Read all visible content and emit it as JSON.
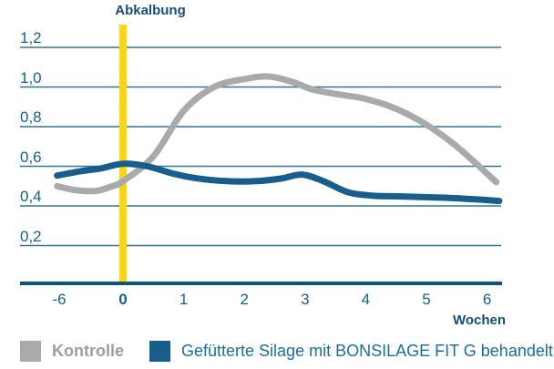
{
  "colors": {
    "text_dark_blue": "#164F7A",
    "tick_text_blue": "#17618C",
    "grid": "#2F7796",
    "axis": "#0E567E",
    "marker_yellow": "#FFD60C",
    "series_gray": "#A8AAAC",
    "series_blue": "#175E8C",
    "legend_gray_text": "#9B9EA1",
    "legend_blue_text": "#1A6FA0"
  },
  "chart_data": {
    "type": "line",
    "title": "Abkalbung",
    "xlabel": "Wochen",
    "ylabel": "",
    "ylim": [
      0,
      1.3
    ],
    "grid": "horizontal gridlines only",
    "legend_position": "bottom",
    "x_axis_note": "x scale compressed between week -6 and week 0; 'Abkalbung' (calving) marked by yellow vertical line at week 0",
    "event_marker": {
      "label": "Abkalbung",
      "x_week": 0
    },
    "x_axis_ticks": [
      {
        "label": "-6",
        "week": -6,
        "bold": false
      },
      {
        "label": "0",
        "week": 0,
        "bold": true
      },
      {
        "label": "1",
        "week": 1,
        "bold": false
      },
      {
        "label": "2",
        "week": 2,
        "bold": false
      },
      {
        "label": "3",
        "week": 3,
        "bold": false
      },
      {
        "label": "4",
        "week": 4,
        "bold": false
      },
      {
        "label": "5",
        "week": 5,
        "bold": false
      },
      {
        "label": "6",
        "week": 6,
        "bold": false
      }
    ],
    "y_axis_ticks": [
      {
        "label": "1,2",
        "value": 1.2
      },
      {
        "label": "1,0",
        "value": 1.0
      },
      {
        "label": "0,8",
        "value": 0.8
      },
      {
        "label": "0,6",
        "value": 0.6
      },
      {
        "label": "0,4",
        "value": 0.4
      },
      {
        "label": "0,2",
        "value": 0.2
      }
    ],
    "y_gridlines": [
      1.2,
      1.0,
      0.8,
      0.6,
      0.4,
      0.2
    ],
    "series": [
      {
        "name": "Kontrolle",
        "color": "#A8AAAC",
        "points": [
          [
            -6.2,
            0.5
          ],
          [
            -4.5,
            0.48
          ],
          [
            -2.5,
            0.476
          ],
          [
            -1,
            0.5
          ],
          [
            0,
            0.525
          ],
          [
            0.5,
            0.65
          ],
          [
            1,
            0.88
          ],
          [
            1.5,
            1.0
          ],
          [
            2,
            1.04
          ],
          [
            2.4,
            1.053
          ],
          [
            2.8,
            1.025
          ],
          [
            3.1,
            0.99
          ],
          [
            3.5,
            0.965
          ],
          [
            4,
            0.94
          ],
          [
            4.5,
            0.89
          ],
          [
            5,
            0.81
          ],
          [
            5.5,
            0.7
          ],
          [
            6.15,
            0.52
          ]
        ]
      },
      {
        "name": "Gefütterte Silage mit BONSILAGE FIT G behandelt",
        "color": "#175E8C",
        "points": [
          [
            -6.2,
            0.553
          ],
          [
            -4,
            0.575
          ],
          [
            -2,
            0.59
          ],
          [
            0,
            0.613
          ],
          [
            0.4,
            0.6
          ],
          [
            0.8,
            0.565
          ],
          [
            1.2,
            0.54
          ],
          [
            1.7,
            0.525
          ],
          [
            2.2,
            0.525
          ],
          [
            2.6,
            0.538
          ],
          [
            2.95,
            0.558
          ],
          [
            3.3,
            0.525
          ],
          [
            3.7,
            0.47
          ],
          [
            4.1,
            0.452
          ],
          [
            4.6,
            0.448
          ],
          [
            5.1,
            0.443
          ],
          [
            5.6,
            0.437
          ],
          [
            6.2,
            0.425
          ]
        ]
      }
    ]
  }
}
